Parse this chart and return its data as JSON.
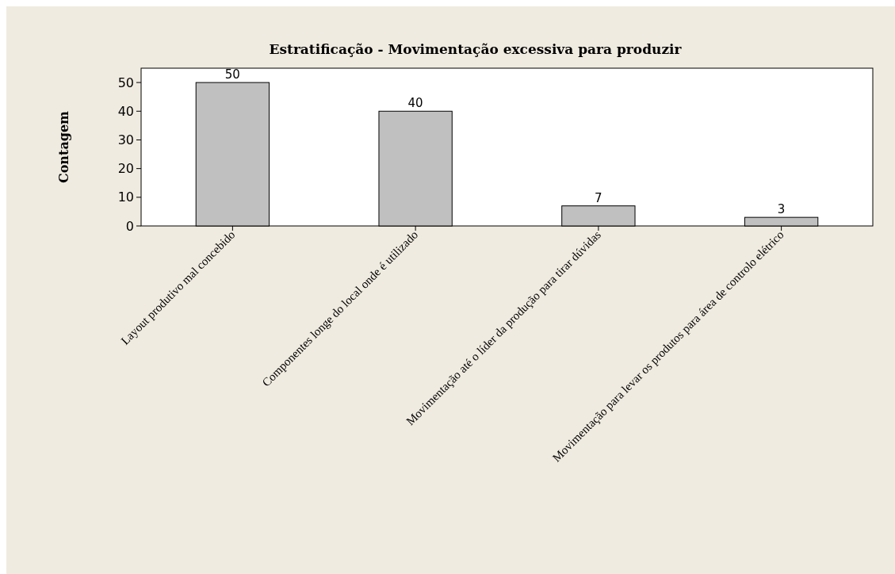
{
  "chart_data": {
    "type": "bar",
    "title": "Estratificação - Movimentação excessiva para produzir",
    "ylabel": "Contagem",
    "categories": [
      "Layout produtivo mal concebido",
      "Componentes longe do local onde é utilizado",
      "Movimentação até o líder da produção para tirar dúvidas",
      "Movimentação para levar os produtos para área de controlo elétrico"
    ],
    "values": [
      50,
      40,
      7,
      3
    ],
    "color": "#c0c0c0",
    "ylim": [
      0,
      55
    ],
    "yticks": [
      0,
      10,
      20,
      30,
      40,
      50
    ],
    "data_labels": true,
    "grid": false
  }
}
